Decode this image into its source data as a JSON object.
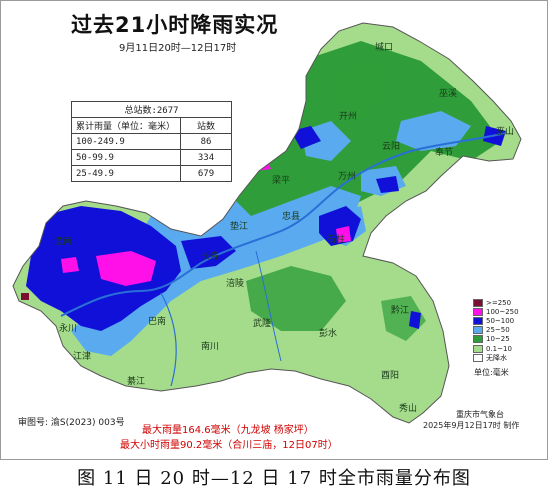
{
  "title": "过去21小时降雨实况",
  "subtitle": "9月11日20时—12日17时",
  "stats_table": {
    "total_label": "总站数:2677",
    "header": [
      "累计雨量（单位：毫米）",
      "站数"
    ],
    "rows": [
      {
        "range": "100-249.9",
        "count": "86"
      },
      {
        "range": "50-99.9",
        "count": "334"
      },
      {
        "range": "25-49.9",
        "count": "679"
      }
    ]
  },
  "legend": {
    "items": [
      {
        "label": ">=250",
        "color": "#7a1030"
      },
      {
        "label": "100~250",
        "color": "#ff10e8"
      },
      {
        "label": "50~100",
        "color": "#1010d8"
      },
      {
        "label": "25~50",
        "color": "#5aaaf0"
      },
      {
        "label": "10~25",
        "color": "#2f9e3a"
      },
      {
        "label": "0.1~10",
        "color": "#a5dc8c"
      },
      {
        "label": "无降水",
        "color": "#ffffff"
      }
    ],
    "unit": "单位:毫米"
  },
  "places": [
    "城口",
    "巫溪",
    "开州",
    "云阳",
    "奉节",
    "巫山",
    "万州",
    "梁平",
    "忠县",
    "石柱",
    "垫江",
    "长寿",
    "潼南",
    "涪陵",
    "巴南",
    "永川",
    "江津",
    "綦江",
    "南川",
    "武隆",
    "彭水",
    "黔江",
    "酉阳",
    "秀山"
  ],
  "footer": {
    "approval_no": "审图号: 渝S(2023) 003号",
    "max_rain": "最大雨量164.6毫米（九龙坡 杨家坪）",
    "max_hourly": "最大小时雨量90.2毫米（合川三庙，12日07时）",
    "org": "重庆市气象台",
    "issued": "2025年9月12日17时 制作"
  },
  "caption": "图  11 日 20 时—12 日 17 时全市雨量分布图"
}
